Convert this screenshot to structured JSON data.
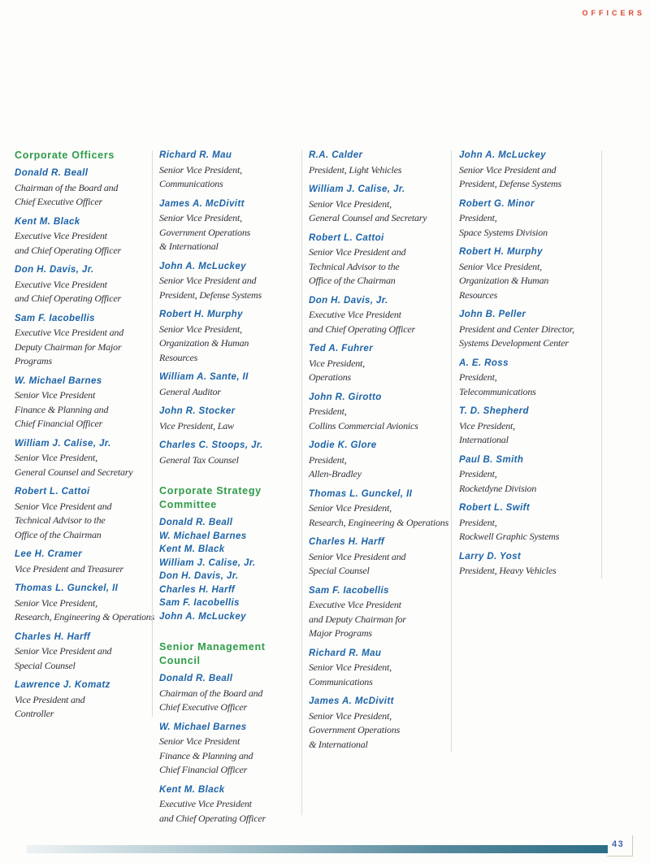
{
  "page": {
    "header_label": "OFFICERS",
    "page_number": "43"
  },
  "colors": {
    "heading_green": "#2e9b48",
    "name_blue": "#1d64a9",
    "title_ink": "#2f2f38",
    "officers_red": "#dc4532",
    "page_number_blue": "#3f66ad",
    "corner_line_green": "#c3d2b2",
    "column_divider": "#d9ded7",
    "footer_bar_teal": "#2d6e86"
  },
  "columns": [
    {
      "blocks": [
        {
          "type": "heading",
          "lines": [
            "Corporate Officers"
          ]
        },
        {
          "type": "entry",
          "name": "Donald R. Beall",
          "title_lines": [
            "Chairman of the Board and",
            "Chief Executive Officer"
          ]
        },
        {
          "type": "entry",
          "name": "Kent M. Black",
          "title_lines": [
            "Executive Vice President",
            "and Chief Operating Officer"
          ]
        },
        {
          "type": "entry",
          "name": "Don H. Davis, Jr.",
          "title_lines": [
            "Executive Vice President",
            "and Chief Operating Officer"
          ]
        },
        {
          "type": "entry",
          "name": "Sam F. Iacobellis",
          "title_lines": [
            "Executive Vice President and",
            "Deputy Chairman for Major",
            "Programs"
          ]
        },
        {
          "type": "entry",
          "name": "W. Michael Barnes",
          "title_lines": [
            "Senior Vice President",
            "Finance & Planning and",
            "Chief Financial Officer"
          ]
        },
        {
          "type": "entry",
          "name": "William J. Calise, Jr.",
          "title_lines": [
            "Senior Vice President,",
            "General Counsel and Secretary"
          ]
        },
        {
          "type": "entry",
          "name": "Robert L. Cattoi",
          "title_lines": [
            "Senior Vice President and",
            "Technical Advisor to the",
            "Office of the Chairman"
          ]
        },
        {
          "type": "entry",
          "name": "Lee H. Cramer",
          "title_lines": [
            "Vice President and Treasurer"
          ]
        },
        {
          "type": "entry",
          "name": "Thomas L. Gunckel, II",
          "title_lines": [
            "Senior Vice President,",
            "Research, Engineering & Operations"
          ]
        },
        {
          "type": "entry",
          "name": "Charles H. Harff",
          "title_lines": [
            "Senior Vice President and",
            "Special Counsel"
          ]
        },
        {
          "type": "entry",
          "name": "Lawrence J. Komatz",
          "title_lines": [
            "Vice President and",
            "Controller"
          ]
        }
      ]
    },
    {
      "blocks": [
        {
          "type": "entry",
          "name": "Richard R. Mau",
          "title_lines": [
            "Senior Vice President,",
            "Communications"
          ]
        },
        {
          "type": "entry",
          "name": "James A. McDivitt",
          "title_lines": [
            "Senior Vice President,",
            "Government Operations",
            "& International"
          ]
        },
        {
          "type": "entry",
          "name": "John A. McLuckey",
          "title_lines": [
            "Senior Vice President and",
            "President, Defense Systems"
          ]
        },
        {
          "type": "entry",
          "name": "Robert H. Murphy",
          "title_lines": [
            "Senior Vice President,",
            "Organization & Human",
            "Resources"
          ]
        },
        {
          "type": "entry",
          "name": "William A. Sante, II",
          "title_lines": [
            "General Auditor"
          ]
        },
        {
          "type": "entry",
          "name": "John R. Stocker",
          "title_lines": [
            "Vice President, Law"
          ]
        },
        {
          "type": "entry",
          "name": "Charles C. Stoops, Jr.",
          "title_lines": [
            "General Tax Counsel"
          ]
        },
        {
          "type": "heading",
          "lines": [
            "Corporate Strategy",
            "Committee"
          ]
        },
        {
          "type": "name_list",
          "names": [
            "Donald R. Beall",
            "W. Michael Barnes",
            "Kent M. Black",
            "William J. Calise, Jr.",
            "Don H. Davis, Jr.",
            "Charles H. Harff",
            "Sam F. Iacobellis",
            "John A. McLuckey"
          ]
        },
        {
          "type": "heading",
          "lines": [
            "Senior Management",
            "Council"
          ]
        },
        {
          "type": "entry",
          "name": "Donald R. Beall",
          "title_lines": [
            "Chairman of the Board and",
            "Chief Executive Officer"
          ]
        },
        {
          "type": "entry",
          "name": "W. Michael Barnes",
          "title_lines": [
            "Senior Vice President",
            "Finance & Planning and",
            "Chief Financial Officer"
          ]
        },
        {
          "type": "entry",
          "name": "Kent M. Black",
          "title_lines": [
            "Executive Vice President",
            "and Chief Operating Officer"
          ]
        }
      ]
    },
    {
      "blocks": [
        {
          "type": "entry",
          "name": "R.A. Calder",
          "title_lines": [
            "President, Light Vehicles"
          ]
        },
        {
          "type": "entry",
          "name": "William J. Calise, Jr.",
          "title_lines": [
            "Senior Vice President,",
            "General Counsel and Secretary"
          ]
        },
        {
          "type": "entry",
          "name": "Robert L. Cattoi",
          "title_lines": [
            "Senior Vice President and",
            "Technical Advisor to the",
            "Office of the Chairman"
          ]
        },
        {
          "type": "entry",
          "name": "Don H. Davis, Jr.",
          "title_lines": [
            "Executive Vice President",
            "and Chief Operating Officer"
          ]
        },
        {
          "type": "entry",
          "name": "Ted A. Fuhrer",
          "title_lines": [
            "Vice President,",
            "Operations"
          ]
        },
        {
          "type": "entry",
          "name": "John R. Girotto",
          "title_lines": [
            "President,",
            "Collins Commercial Avionics"
          ]
        },
        {
          "type": "entry",
          "name": "Jodie K. Glore",
          "title_lines": [
            "President,",
            "Allen-Bradley"
          ]
        },
        {
          "type": "entry",
          "name": "Thomas L. Gunckel, II",
          "title_lines": [
            "Senior Vice President,",
            "Research, Engineering & Operations"
          ]
        },
        {
          "type": "entry",
          "name": "Charles H. Harff",
          "title_lines": [
            "Senior Vice President and",
            "Special Counsel"
          ]
        },
        {
          "type": "entry",
          "name": "Sam F. Iacobellis",
          "title_lines": [
            "Executive Vice President",
            "and Deputy Chairman for",
            "Major Programs"
          ]
        },
        {
          "type": "entry",
          "name": "Richard R. Mau",
          "title_lines": [
            "Senior Vice President,",
            "Communications"
          ]
        },
        {
          "type": "entry",
          "name": "James A. McDivitt",
          "title_lines": [
            "Senior Vice President,",
            "Government Operations",
            "& International"
          ]
        }
      ]
    },
    {
      "blocks": [
        {
          "type": "entry",
          "name": "John A. McLuckey",
          "title_lines": [
            "Senior Vice President and",
            "President, Defense Systems"
          ]
        },
        {
          "type": "entry",
          "name": "Robert G. Minor",
          "title_lines": [
            "President,",
            "Space Systems Division"
          ]
        },
        {
          "type": "entry",
          "name": "Robert H. Murphy",
          "title_lines": [
            "Senior Vice President,",
            "Organization & Human",
            "Resources"
          ]
        },
        {
          "type": "entry",
          "name": "John B. Peller",
          "title_lines": [
            "President and Center Director,",
            "Systems Development Center"
          ]
        },
        {
          "type": "entry",
          "name": "A. E. Ross",
          "title_lines": [
            "President,",
            "Telecommunications"
          ]
        },
        {
          "type": "entry",
          "name": "T. D. Shepherd",
          "title_lines": [
            "Vice President,",
            "International"
          ]
        },
        {
          "type": "entry",
          "name": "Paul B. Smith",
          "title_lines": [
            "President,",
            "Rocketdyne Division"
          ]
        },
        {
          "type": "entry",
          "name": "Robert L. Swift",
          "title_lines": [
            "President,",
            "Rockwell Graphic Systems"
          ]
        },
        {
          "type": "entry",
          "name": "Larry D. Yost",
          "title_lines": [
            "President, Heavy Vehicles"
          ]
        }
      ]
    }
  ]
}
